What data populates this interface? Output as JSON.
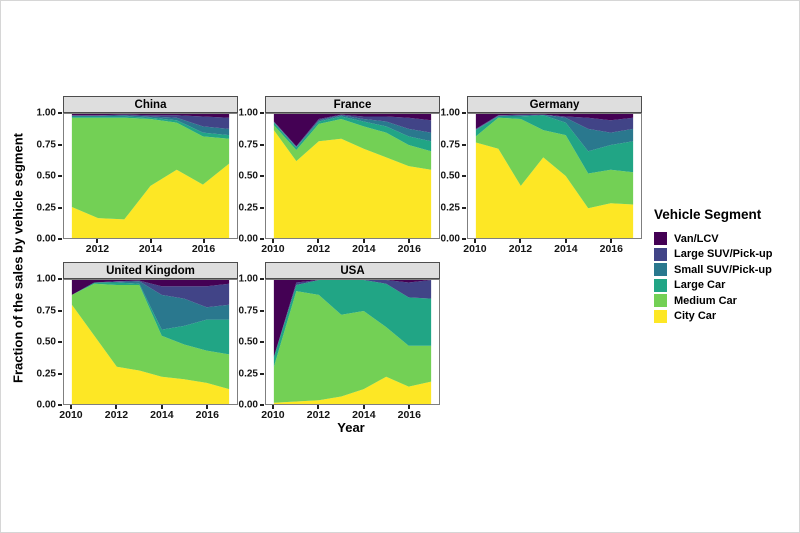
{
  "figure": {
    "y_axis_title": "Fraction of the sales by vehicle segment",
    "x_axis_title": "Year",
    "y_ticks": [
      {
        "label": "1.00",
        "value": 1.0
      },
      {
        "label": "0.75",
        "value": 0.75
      },
      {
        "label": "0.50",
        "value": 0.5
      },
      {
        "label": "0.25",
        "value": 0.25
      },
      {
        "label": "0.00",
        "value": 0.0
      }
    ]
  },
  "legend": {
    "title": "Vehicle Segment",
    "items": [
      {
        "label": "Van/LCV",
        "color": "#440154"
      },
      {
        "label": "Large SUV/Pick-up",
        "color": "#414487"
      },
      {
        "label": "Small SUV/Pick-up",
        "color": "#2a788e"
      },
      {
        "label": "Large Car",
        "color": "#21a585"
      },
      {
        "label": "Medium Car",
        "color": "#73d055"
      },
      {
        "label": "City Car",
        "color": "#fde725"
      }
    ]
  },
  "chart_data": [
    {
      "type": "area",
      "stacked": true,
      "title": "China",
      "x": [
        2011,
        2012,
        2013,
        2014,
        2015,
        2016,
        2017
      ],
      "x_ticks": [
        2012,
        2014,
        2016
      ],
      "xlim": [
        2010.7,
        2017.3
      ],
      "ylim": [
        0,
        1
      ],
      "grid": false,
      "stack_order": "bottom-to-top",
      "series": [
        {
          "name": "City Car",
          "values": [
            0.25,
            0.16,
            0.15,
            0.42,
            0.55,
            0.43,
            0.6
          ]
        },
        {
          "name": "Medium Car",
          "values": [
            0.72,
            0.81,
            0.82,
            0.54,
            0.38,
            0.39,
            0.2
          ]
        },
        {
          "name": "Large Car",
          "values": [
            0.01,
            0.01,
            0.01,
            0.01,
            0.02,
            0.03,
            0.03
          ]
        },
        {
          "name": "Small SUV/Pick-up",
          "values": [
            0.005,
            0.005,
            0.01,
            0.01,
            0.02,
            0.05,
            0.05
          ]
        },
        {
          "name": "Large SUV/Pick-up",
          "values": [
            0.005,
            0.005,
            0.005,
            0.01,
            0.02,
            0.08,
            0.09
          ]
        },
        {
          "name": "Van/LCV",
          "values": [
            0.01,
            0.01,
            0.005,
            0.01,
            0.01,
            0.02,
            0.03
          ]
        }
      ]
    },
    {
      "type": "area",
      "stacked": true,
      "title": "France",
      "x": [
        2010,
        2011,
        2012,
        2013,
        2014,
        2015,
        2016,
        2017
      ],
      "x_ticks": [
        2010,
        2012,
        2014,
        2016
      ],
      "xlim": [
        2009.65,
        2017.35
      ],
      "ylim": [
        0,
        1
      ],
      "grid": false,
      "stack_order": "bottom-to-top",
      "series": [
        {
          "name": "City Car",
          "values": [
            0.87,
            0.62,
            0.78,
            0.8,
            0.72,
            0.65,
            0.58,
            0.55
          ]
        },
        {
          "name": "Medium Car",
          "values": [
            0.04,
            0.09,
            0.14,
            0.16,
            0.18,
            0.2,
            0.17,
            0.15
          ]
        },
        {
          "name": "Large Car",
          "values": [
            0.02,
            0.02,
            0.02,
            0.02,
            0.04,
            0.05,
            0.07,
            0.08
          ]
        },
        {
          "name": "Small SUV/Pick-up",
          "values": [
            0.005,
            0.005,
            0.01,
            0.01,
            0.02,
            0.04,
            0.06,
            0.07
          ]
        },
        {
          "name": "Large SUV/Pick-up",
          "values": [
            0.005,
            0.005,
            0.01,
            0.005,
            0.02,
            0.04,
            0.09,
            0.1
          ]
        },
        {
          "name": "Van/LCV",
          "values": [
            0.06,
            0.26,
            0.04,
            0.005,
            0.02,
            0.02,
            0.03,
            0.05
          ]
        }
      ]
    },
    {
      "type": "area",
      "stacked": true,
      "title": "Germany",
      "x": [
        2010,
        2011,
        2012,
        2013,
        2014,
        2015,
        2016,
        2017
      ],
      "x_ticks": [
        2010,
        2012,
        2014,
        2016
      ],
      "xlim": [
        2009.65,
        2017.35
      ],
      "ylim": [
        0,
        1
      ],
      "grid": false,
      "stack_order": "bottom-to-top",
      "series": [
        {
          "name": "City Car",
          "values": [
            0.77,
            0.72,
            0.42,
            0.65,
            0.5,
            0.24,
            0.28,
            0.27
          ]
        },
        {
          "name": "Medium Car",
          "values": [
            0.05,
            0.25,
            0.54,
            0.22,
            0.33,
            0.28,
            0.27,
            0.26
          ]
        },
        {
          "name": "Large Car",
          "values": [
            0.05,
            0.01,
            0.02,
            0.12,
            0.1,
            0.18,
            0.2,
            0.25
          ]
        },
        {
          "name": "Small SUV/Pick-up",
          "values": [
            0.005,
            0.005,
            0.01,
            0.005,
            0.04,
            0.18,
            0.1,
            0.1
          ]
        },
        {
          "name": "Large SUV/Pick-up",
          "values": [
            0.005,
            0.005,
            0.005,
            0.0,
            0.01,
            0.09,
            0.1,
            0.09
          ]
        },
        {
          "name": "Van/LCV",
          "values": [
            0.12,
            0.01,
            0.005,
            0.005,
            0.02,
            0.03,
            0.05,
            0.03
          ]
        }
      ]
    },
    {
      "type": "area",
      "stacked": true,
      "title": "United Kingdom",
      "x": [
        2010,
        2011,
        2012,
        2013,
        2014,
        2015,
        2016,
        2017
      ],
      "x_ticks": [
        2010,
        2012,
        2014,
        2016
      ],
      "xlim": [
        2009.65,
        2017.35
      ],
      "ylim": [
        0,
        1
      ],
      "grid": false,
      "stack_order": "bottom-to-top",
      "series": [
        {
          "name": "City Car",
          "values": [
            0.8,
            0.55,
            0.3,
            0.27,
            0.22,
            0.2,
            0.17,
            0.12
          ]
        },
        {
          "name": "Medium Car",
          "values": [
            0.08,
            0.42,
            0.66,
            0.69,
            0.33,
            0.28,
            0.26,
            0.28
          ]
        },
        {
          "name": "Large Car",
          "values": [
            0.0,
            0.01,
            0.02,
            0.01,
            0.05,
            0.15,
            0.25,
            0.28
          ]
        },
        {
          "name": "Small SUV/Pick-up",
          "values": [
            0.0,
            0.0,
            0.005,
            0.02,
            0.28,
            0.22,
            0.1,
            0.12
          ]
        },
        {
          "name": "Large SUV/Pick-up",
          "values": [
            0.0,
            0.0,
            0.005,
            0.005,
            0.07,
            0.1,
            0.17,
            0.17
          ]
        },
        {
          "name": "Van/LCV",
          "values": [
            0.12,
            0.02,
            0.01,
            0.005,
            0.05,
            0.05,
            0.05,
            0.03
          ]
        }
      ]
    },
    {
      "type": "area",
      "stacked": true,
      "title": "USA",
      "x": [
        2010,
        2011,
        2012,
        2013,
        2014,
        2015,
        2016,
        2017
      ],
      "x_ticks": [
        2010,
        2012,
        2014,
        2016
      ],
      "xlim": [
        2009.65,
        2017.35
      ],
      "ylim": [
        0,
        1
      ],
      "grid": false,
      "stack_order": "bottom-to-top",
      "series": [
        {
          "name": "City Car",
          "values": [
            0.01,
            0.02,
            0.03,
            0.06,
            0.12,
            0.22,
            0.14,
            0.18
          ]
        },
        {
          "name": "Medium Car",
          "values": [
            0.29,
            0.89,
            0.85,
            0.66,
            0.63,
            0.4,
            0.33,
            0.29
          ]
        },
        {
          "name": "Large Car",
          "values": [
            0.08,
            0.05,
            0.12,
            0.28,
            0.25,
            0.35,
            0.39,
            0.38
          ]
        },
        {
          "name": "Small SUV/Pick-up",
          "values": [
            0.0,
            0.0,
            0.0,
            0.0,
            0.0,
            0.0,
            0.0,
            0.0
          ]
        },
        {
          "name": "Large SUV/Pick-up",
          "values": [
            0.0,
            0.02,
            0.0,
            0.0,
            0.0,
            0.03,
            0.12,
            0.15
          ]
        },
        {
          "name": "Van/LCV",
          "values": [
            0.62,
            0.02,
            0.0,
            0.0,
            0.0,
            0.0,
            0.02,
            0.0
          ]
        }
      ]
    }
  ]
}
